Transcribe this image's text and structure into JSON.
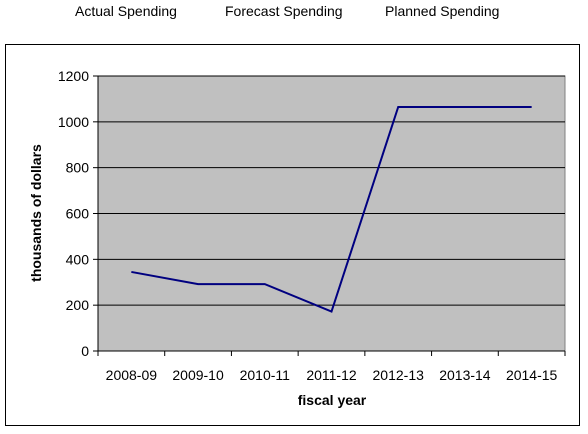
{
  "legend": {
    "items": [
      "Actual Spending",
      "Forecast Spending",
      "Planned Spending"
    ]
  },
  "chart_data": {
    "type": "line",
    "categories": [
      "2008-09",
      "2009-10",
      "2010-11",
      "2011-12",
      "2012-13",
      "2013-14",
      "2014-15"
    ],
    "series": [
      {
        "values": [
          345,
          292,
          292,
          172,
          1065,
          1065,
          1065
        ]
      }
    ],
    "xlabel": "fiscal year",
    "ylabel": "thousands of dollars",
    "ylim": [
      0,
      1200
    ],
    "yticks": [
      0,
      200,
      400,
      600,
      800,
      1000,
      1200
    ],
    "grid": true,
    "colors": {
      "plot_bg": "#c0c0c0",
      "line": "#000080",
      "grid": "#000000"
    }
  }
}
